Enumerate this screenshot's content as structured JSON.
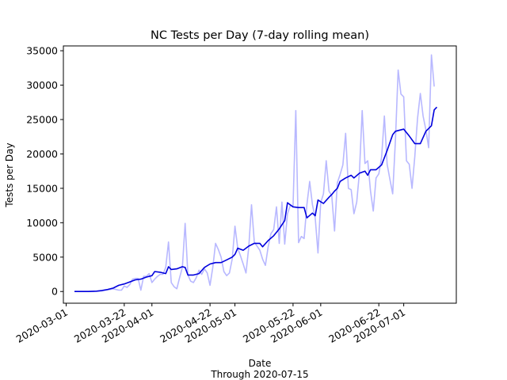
{
  "chart_data": {
    "type": "line",
    "title": "NC Tests per Day (7-day rolling mean)",
    "xlabel": "Date",
    "subtitle": "Through 2020-07-15",
    "ylabel": "Tests per Day",
    "ylim": [
      -1700,
      35700
    ],
    "xlim": [
      "2020-02-29",
      "2020-07-20"
    ],
    "grid": false,
    "x_ticks": [
      "2020-03-01",
      "2020-03-22",
      "2020-04-01",
      "2020-04-22",
      "2020-05-01",
      "2020-05-22",
      "2020-06-01",
      "2020-06-22",
      "2020-07-01"
    ],
    "y_ticks": [
      0,
      5000,
      10000,
      15000,
      20000,
      25000,
      30000,
      35000
    ],
    "y_tick_labels": [
      "0",
      "5000",
      "10000",
      "15000",
      "20000",
      "25000",
      "30000",
      "35000"
    ],
    "colors": {
      "daily": "#b8b8ff",
      "rolling": "#0000dd"
    },
    "series": [
      {
        "role": "daily",
        "points": [
          [
            "2020-03-04",
            0
          ],
          [
            "2020-03-09",
            0
          ],
          [
            "2020-03-14",
            100
          ],
          [
            "2020-03-17",
            300
          ],
          [
            "2020-03-18",
            400
          ],
          [
            "2020-03-20",
            200
          ],
          [
            "2020-03-21",
            200
          ],
          [
            "2020-03-22",
            800
          ],
          [
            "2020-03-23",
            600
          ],
          [
            "2020-03-24",
            1000
          ],
          [
            "2020-03-25",
            1800
          ],
          [
            "2020-03-26",
            1900
          ],
          [
            "2020-03-27",
            1900
          ],
          [
            "2020-03-28",
            200
          ],
          [
            "2020-03-29",
            2200
          ],
          [
            "2020-03-30",
            2200
          ],
          [
            "2020-03-31",
            2600
          ],
          [
            "2020-04-01",
            1300
          ],
          [
            "2020-04-02",
            1800
          ],
          [
            "2020-04-03",
            2200
          ],
          [
            "2020-04-04",
            2500
          ],
          [
            "2020-04-05",
            2500
          ],
          [
            "2020-04-06",
            3500
          ],
          [
            "2020-04-07",
            7200
          ],
          [
            "2020-04-08",
            1300
          ],
          [
            "2020-04-09",
            700
          ],
          [
            "2020-04-10",
            400
          ],
          [
            "2020-04-11",
            2000
          ],
          [
            "2020-04-12",
            3500
          ],
          [
            "2020-04-13",
            9900
          ],
          [
            "2020-04-14",
            2400
          ],
          [
            "2020-04-15",
            1500
          ],
          [
            "2020-04-16",
            1300
          ],
          [
            "2020-04-17",
            2000
          ],
          [
            "2020-04-18",
            3100
          ],
          [
            "2020-04-19",
            2500
          ],
          [
            "2020-04-20",
            3300
          ],
          [
            "2020-04-21",
            2700
          ],
          [
            "2020-04-22",
            900
          ],
          [
            "2020-04-23",
            3500
          ],
          [
            "2020-04-24",
            7000
          ],
          [
            "2020-04-25",
            6100
          ],
          [
            "2020-04-26",
            5000
          ],
          [
            "2020-04-27",
            2900
          ],
          [
            "2020-04-28",
            2300
          ],
          [
            "2020-04-29",
            2700
          ],
          [
            "2020-04-30",
            4700
          ],
          [
            "2020-05-01",
            9500
          ],
          [
            "2020-05-02",
            6300
          ],
          [
            "2020-05-03",
            5200
          ],
          [
            "2020-05-04",
            4000
          ],
          [
            "2020-05-05",
            2700
          ],
          [
            "2020-05-06",
            6400
          ],
          [
            "2020-05-07",
            12600
          ],
          [
            "2020-05-08",
            7200
          ],
          [
            "2020-05-09",
            6600
          ],
          [
            "2020-05-10",
            6000
          ],
          [
            "2020-05-11",
            4700
          ],
          [
            "2020-05-12",
            3800
          ],
          [
            "2020-05-13",
            6500
          ],
          [
            "2020-05-14",
            8400
          ],
          [
            "2020-05-15",
            9000
          ],
          [
            "2020-05-16",
            12300
          ],
          [
            "2020-05-17",
            7000
          ],
          [
            "2020-05-18",
            13000
          ],
          [
            "2020-05-19",
            6900
          ],
          [
            "2020-05-20",
            11300
          ],
          [
            "2020-05-21",
            12500
          ],
          [
            "2020-05-22",
            12400
          ],
          [
            "2020-05-23",
            26300
          ],
          [
            "2020-05-24",
            7100
          ],
          [
            "2020-05-25",
            8000
          ],
          [
            "2020-05-26",
            7700
          ],
          [
            "2020-05-27",
            12600
          ],
          [
            "2020-05-28",
            16000
          ],
          [
            "2020-05-29",
            12600
          ],
          [
            "2020-05-30",
            10700
          ],
          [
            "2020-05-31",
            5600
          ],
          [
            "2020-06-01",
            12900
          ],
          [
            "2020-06-02",
            14200
          ],
          [
            "2020-06-03",
            19000
          ],
          [
            "2020-06-04",
            14600
          ],
          [
            "2020-06-05",
            13900
          ],
          [
            "2020-06-06",
            8800
          ],
          [
            "2020-06-07",
            15800
          ],
          [
            "2020-06-08",
            17000
          ],
          [
            "2020-06-09",
            18400
          ],
          [
            "2020-06-10",
            23000
          ],
          [
            "2020-06-11",
            15000
          ],
          [
            "2020-06-12",
            14800
          ],
          [
            "2020-06-13",
            11300
          ],
          [
            "2020-06-14",
            13000
          ],
          [
            "2020-06-15",
            17300
          ],
          [
            "2020-06-16",
            26300
          ],
          [
            "2020-06-17",
            18600
          ],
          [
            "2020-06-18",
            19000
          ],
          [
            "2020-06-19",
            14600
          ],
          [
            "2020-06-20",
            11700
          ],
          [
            "2020-06-21",
            16500
          ],
          [
            "2020-06-22",
            17100
          ],
          [
            "2020-06-23",
            19500
          ],
          [
            "2020-06-24",
            25500
          ],
          [
            "2020-06-25",
            18500
          ],
          [
            "2020-06-26",
            16300
          ],
          [
            "2020-06-27",
            14200
          ],
          [
            "2020-06-28",
            22100
          ],
          [
            "2020-06-29",
            32200
          ],
          [
            "2020-06-30",
            28700
          ],
          [
            "2020-07-01",
            28300
          ],
          [
            "2020-07-02",
            19000
          ],
          [
            "2020-07-03",
            18500
          ],
          [
            "2020-07-04",
            15000
          ],
          [
            "2020-07-05",
            19600
          ],
          [
            "2020-07-06",
            25200
          ],
          [
            "2020-07-07",
            28800
          ],
          [
            "2020-07-08",
            25500
          ],
          [
            "2020-07-09",
            23500
          ],
          [
            "2020-07-10",
            20900
          ],
          [
            "2020-07-11",
            34400
          ],
          [
            "2020-07-12",
            29800
          ]
        ]
      },
      {
        "role": "rolling",
        "points": [
          [
            "2020-03-04",
            0
          ],
          [
            "2020-03-09",
            0
          ],
          [
            "2020-03-12",
            50
          ],
          [
            "2020-03-14",
            150
          ],
          [
            "2020-03-16",
            300
          ],
          [
            "2020-03-18",
            500
          ],
          [
            "2020-03-20",
            900
          ],
          [
            "2020-03-22",
            1100
          ],
          [
            "2020-03-24",
            1400
          ],
          [
            "2020-03-26",
            1700
          ],
          [
            "2020-03-28",
            1800
          ],
          [
            "2020-03-30",
            2100
          ],
          [
            "2020-04-01",
            2300
          ],
          [
            "2020-04-02",
            2900
          ],
          [
            "2020-04-04",
            2800
          ],
          [
            "2020-04-06",
            2600
          ],
          [
            "2020-04-07",
            3600
          ],
          [
            "2020-04-08",
            3200
          ],
          [
            "2020-04-10",
            3300
          ],
          [
            "2020-04-12",
            3600
          ],
          [
            "2020-04-13",
            3500
          ],
          [
            "2020-04-14",
            2400
          ],
          [
            "2020-04-16",
            2400
          ],
          [
            "2020-04-18",
            2600
          ],
          [
            "2020-04-20",
            3500
          ],
          [
            "2020-04-22",
            4000
          ],
          [
            "2020-04-24",
            4200
          ],
          [
            "2020-04-26",
            4200
          ],
          [
            "2020-04-28",
            4600
          ],
          [
            "2020-04-30",
            5000
          ],
          [
            "2020-05-01",
            5400
          ],
          [
            "2020-05-02",
            6300
          ],
          [
            "2020-05-04",
            6000
          ],
          [
            "2020-05-06",
            6600
          ],
          [
            "2020-05-08",
            7000
          ],
          [
            "2020-05-10",
            7000
          ],
          [
            "2020-05-11",
            6500
          ],
          [
            "2020-05-13",
            7400
          ],
          [
            "2020-05-15",
            8100
          ],
          [
            "2020-05-17",
            9100
          ],
          [
            "2020-05-19",
            10300
          ],
          [
            "2020-05-20",
            12900
          ],
          [
            "2020-05-22",
            12300
          ],
          [
            "2020-05-24",
            12200
          ],
          [
            "2020-05-26",
            12200
          ],
          [
            "2020-05-27",
            10700
          ],
          [
            "2020-05-29",
            11400
          ],
          [
            "2020-05-30",
            11000
          ],
          [
            "2020-05-31",
            13300
          ],
          [
            "2020-06-02",
            12800
          ],
          [
            "2020-06-04",
            13700
          ],
          [
            "2020-06-05",
            14100
          ],
          [
            "2020-06-06",
            14600
          ],
          [
            "2020-06-07",
            15000
          ],
          [
            "2020-06-08",
            16000
          ],
          [
            "2020-06-10",
            16500
          ],
          [
            "2020-06-12",
            16900
          ],
          [
            "2020-06-13",
            16500
          ],
          [
            "2020-06-15",
            17200
          ],
          [
            "2020-06-17",
            17500
          ],
          [
            "2020-06-18",
            16900
          ],
          [
            "2020-06-19",
            17700
          ],
          [
            "2020-06-21",
            17700
          ],
          [
            "2020-06-23",
            18400
          ],
          [
            "2020-06-25",
            20500
          ],
          [
            "2020-06-27",
            22800
          ],
          [
            "2020-06-28",
            23300
          ],
          [
            "2020-07-01",
            23600
          ],
          [
            "2020-07-03",
            22600
          ],
          [
            "2020-07-05",
            21500
          ],
          [
            "2020-07-07",
            21500
          ],
          [
            "2020-07-09",
            23300
          ],
          [
            "2020-07-11",
            24100
          ],
          [
            "2020-07-12",
            26400
          ],
          [
            "2020-07-13",
            26800
          ]
        ]
      }
    ]
  }
}
